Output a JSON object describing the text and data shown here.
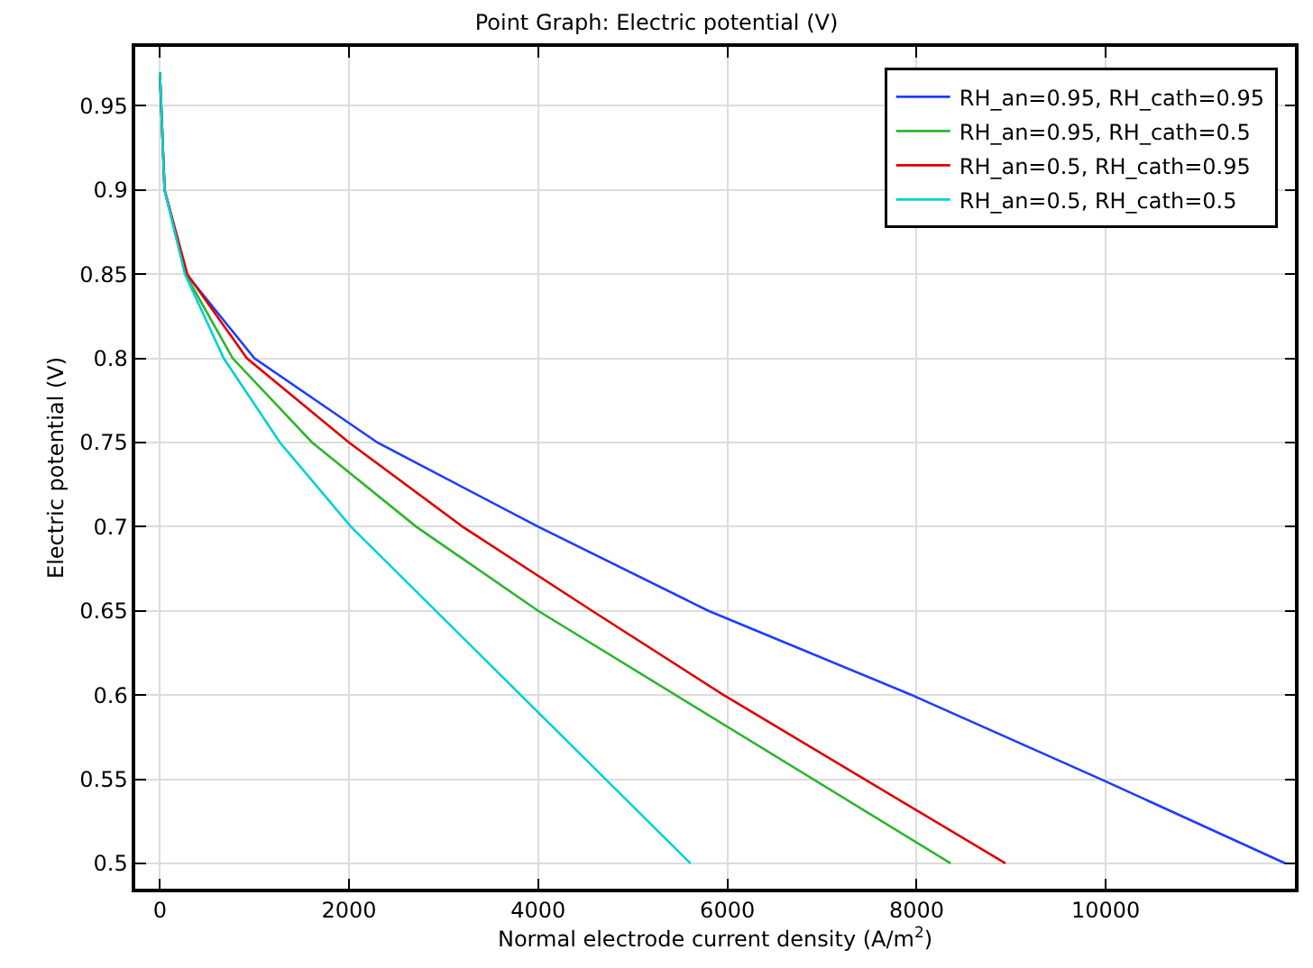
{
  "chart_data": {
    "type": "line",
    "title": "Point Graph: Electric potential (V)",
    "xlabel": "Normal electrode current density (A/m$^{2}$)",
    "ylabel": "Electric potential (V)",
    "xlim": [
      -260,
      12000
    ],
    "ylim": [
      0.485,
      0.985
    ],
    "xticks": [
      0,
      2000,
      4000,
      6000,
      8000,
      10000
    ],
    "yticks": [
      0.5,
      0.55,
      0.6,
      0.65,
      0.7,
      0.75,
      0.8,
      0.85,
      0.9,
      0.95
    ],
    "grid": true,
    "legend": "top right",
    "line_style": "solid",
    "marker": "none",
    "series": [
      {
        "name": "RH_an=0.95, RH_cath=0.95",
        "color": "#1f3cff",
        "x": [
          0,
          50,
          280,
          1000,
          2300,
          4000,
          5800,
          7950,
          9950,
          11900
        ],
        "values": [
          0.97,
          0.9,
          0.85,
          0.8,
          0.75,
          0.7,
          0.65,
          0.6,
          0.55,
          0.5
        ]
      },
      {
        "name": "RH_an=0.95, RH_cath=0.5",
        "color": "#2db52d",
        "x": [
          0,
          50,
          270,
          770,
          1610,
          2710,
          4000,
          8360
        ],
        "values": [
          0.97,
          0.9,
          0.85,
          0.8,
          0.75,
          0.7,
          0.65,
          0.5
        ]
      },
      {
        "name": "RH_an=0.5, RH_cath=0.95",
        "color": "#e00000",
        "x": [
          0,
          50,
          290,
          920,
          2000,
          3200,
          4570,
          5960,
          8940
        ],
        "values": [
          0.97,
          0.9,
          0.85,
          0.8,
          0.75,
          0.7,
          0.65,
          0.6,
          0.5
        ]
      },
      {
        "name": "RH_an=0.5, RH_cath=0.5",
        "color": "#00d2d2",
        "x": [
          0,
          50,
          265,
          675,
          1270,
          2020,
          5610
        ],
        "values": [
          0.97,
          0.9,
          0.85,
          0.8,
          0.75,
          0.7,
          0.5
        ]
      }
    ]
  }
}
